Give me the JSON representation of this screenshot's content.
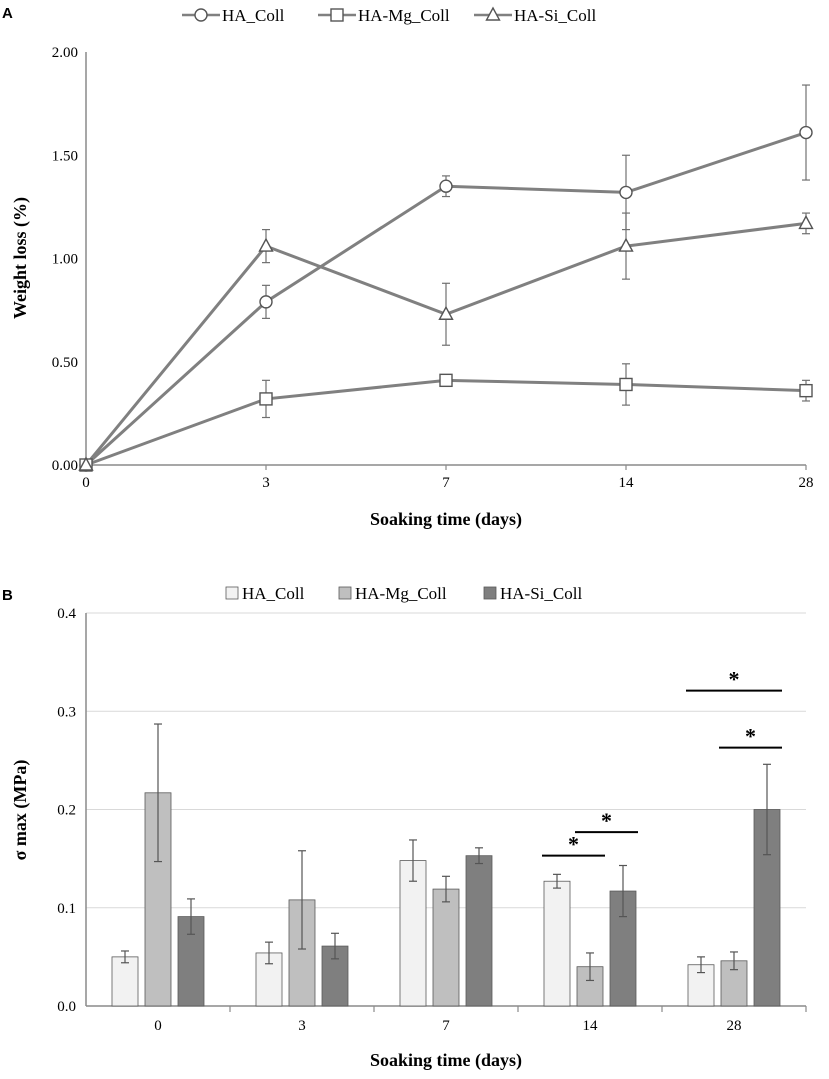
{
  "chart_data": [
    {
      "panel_label": "A",
      "type": "line",
      "x_categories": [
        "0",
        "3",
        "7",
        "14",
        "28"
      ],
      "xlabel": "Soaking time (days)",
      "ylabel": "Weight loss (%)",
      "ylim": [
        0,
        2
      ],
      "yticks": [
        "0.00",
        "0.50",
        "1.00",
        "1.50",
        "2.00"
      ],
      "ytick_values": [
        0,
        0.5,
        1.0,
        1.5,
        2.0
      ],
      "legend_position": "top-center",
      "series": [
        {
          "name": "HA_Coll",
          "marker": "circle",
          "values": [
            0,
            0.79,
            1.35,
            1.32,
            1.61
          ],
          "errors": [
            0,
            0.08,
            0.05,
            0.18,
            0.23
          ]
        },
        {
          "name": "HA-Mg_Coll",
          "marker": "square",
          "values": [
            0,
            0.32,
            0.41,
            0.39,
            0.36
          ],
          "errors": [
            0,
            0.09,
            0.02,
            0.1,
            0.05
          ]
        },
        {
          "name": "HA-Si_Coll",
          "marker": "triangle",
          "values": [
            0,
            1.06,
            0.73,
            1.06,
            1.17
          ],
          "errors": [
            0,
            0.08,
            0.15,
            0.16,
            0.05
          ]
        }
      ],
      "line_color": "#808080"
    },
    {
      "panel_label": "B",
      "type": "bar",
      "categories": [
        "0",
        "3",
        "7",
        "14",
        "28"
      ],
      "xlabel": "Soaking time (days)",
      "ylabel": "σ max (MPa)",
      "ylim": [
        0,
        0.4
      ],
      "yticks": [
        "0.0",
        "0.1",
        "0.2",
        "0.3",
        "0.4"
      ],
      "ytick_values": [
        0,
        0.1,
        0.2,
        0.3,
        0.4
      ],
      "grid": true,
      "legend_position": "top-center",
      "series": [
        {
          "name": "HA_Coll",
          "color": "#f2f2f2",
          "values": [
            0.05,
            0.054,
            0.148,
            0.127,
            0.042
          ],
          "errors": [
            0.006,
            0.011,
            0.021,
            0.007,
            0.008
          ]
        },
        {
          "name": "HA-Mg_Coll",
          "color": "#bfbfbf",
          "values": [
            0.217,
            0.108,
            0.119,
            0.04,
            0.046
          ],
          "errors": [
            0.07,
            0.05,
            0.013,
            0.014,
            0.009
          ]
        },
        {
          "name": "HA-Si_Coll",
          "color": "#7f7f7f",
          "values": [
            0.091,
            0.061,
            0.153,
            0.117,
            0.2
          ],
          "errors": [
            0.018,
            0.013,
            0.008,
            0.026,
            0.046
          ]
        }
      ],
      "significance": [
        {
          "label": "*",
          "category": "14",
          "from_series": 0,
          "to_series": 1,
          "level": 0.153
        },
        {
          "label": "*",
          "category": "14",
          "from_series": 1,
          "to_series": 2,
          "level": 0.177
        },
        {
          "label": "*",
          "category": "28",
          "from_series": 0,
          "to_series": 2,
          "level": 0.321
        },
        {
          "label": "*",
          "category": "28",
          "from_series": 1,
          "to_series": 2,
          "level": 0.263
        }
      ]
    }
  ]
}
